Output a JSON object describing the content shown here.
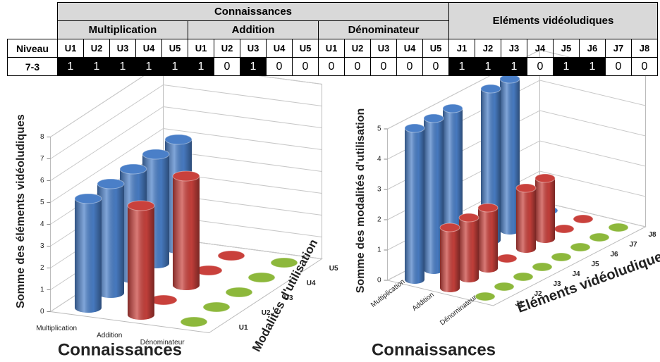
{
  "table": {
    "group_headers": [
      "Connaissances",
      "Eléments vidéoludiques"
    ],
    "sub_headers": [
      "Multiplication",
      "Addition",
      "Dénominateur"
    ],
    "row_header": "Niveau",
    "columns": [
      "U1",
      "U2",
      "U3",
      "U4",
      "U5",
      "U1",
      "U2",
      "U3",
      "U4",
      "U5",
      "U1",
      "U2",
      "U3",
      "U4",
      "U5",
      "J1",
      "J2",
      "J3",
      "J4",
      "J5",
      "J6",
      "J7",
      "J8"
    ],
    "row_label": "7-3",
    "cells": [
      1,
      1,
      1,
      1,
      1,
      1,
      0,
      1,
      0,
      0,
      0,
      0,
      0,
      0,
      0,
      1,
      1,
      1,
      0,
      1,
      1,
      0,
      0
    ]
  },
  "chart_data": [
    {
      "type": "bar3d",
      "y_label": "Somme des éléments vidéoludiques",
      "x_label": "Connaissances",
      "depth_label": "Modalités d'utilisation",
      "categories": [
        "Multiplication",
        "Addition",
        "Dénominateur"
      ],
      "depth_categories": [
        "U1",
        "U2",
        "U3",
        "U4",
        "U5"
      ],
      "colors": [
        "#4a7fc8",
        "#c9413c",
        "#8db83c"
      ],
      "values": [
        [
          5,
          5,
          5,
          5,
          5
        ],
        [
          5,
          0,
          5,
          0,
          0
        ],
        [
          0,
          0,
          0,
          0,
          0
        ]
      ],
      "ylim": [
        0,
        8
      ],
      "yticks": [
        0,
        1,
        2,
        3,
        4,
        5,
        6,
        7,
        8
      ],
      "grid": true
    },
    {
      "type": "bar3d",
      "y_label": "Somme des modalités d'utilisation",
      "x_label": "Connaissances",
      "depth_label": "Eléments vidéoludiques",
      "categories": [
        "Multiplication",
        "Addition",
        "Dénominateur"
      ],
      "depth_categories": [
        "J1",
        "J2",
        "J3",
        "J4",
        "J5",
        "J6",
        "J7",
        "J8"
      ],
      "colors": [
        "#4a7fc8",
        "#c9413c",
        "#8db83c"
      ],
      "values": [
        [
          5,
          5,
          5,
          0,
          5,
          5,
          0,
          0
        ],
        [
          2,
          2,
          2,
          0,
          2,
          2,
          0,
          0
        ],
        [
          0,
          0,
          0,
          0,
          0,
          0,
          0,
          0
        ]
      ],
      "ylim": [
        0,
        5
      ],
      "yticks": [
        0,
        1,
        2,
        3,
        4,
        5
      ],
      "grid": true
    }
  ]
}
